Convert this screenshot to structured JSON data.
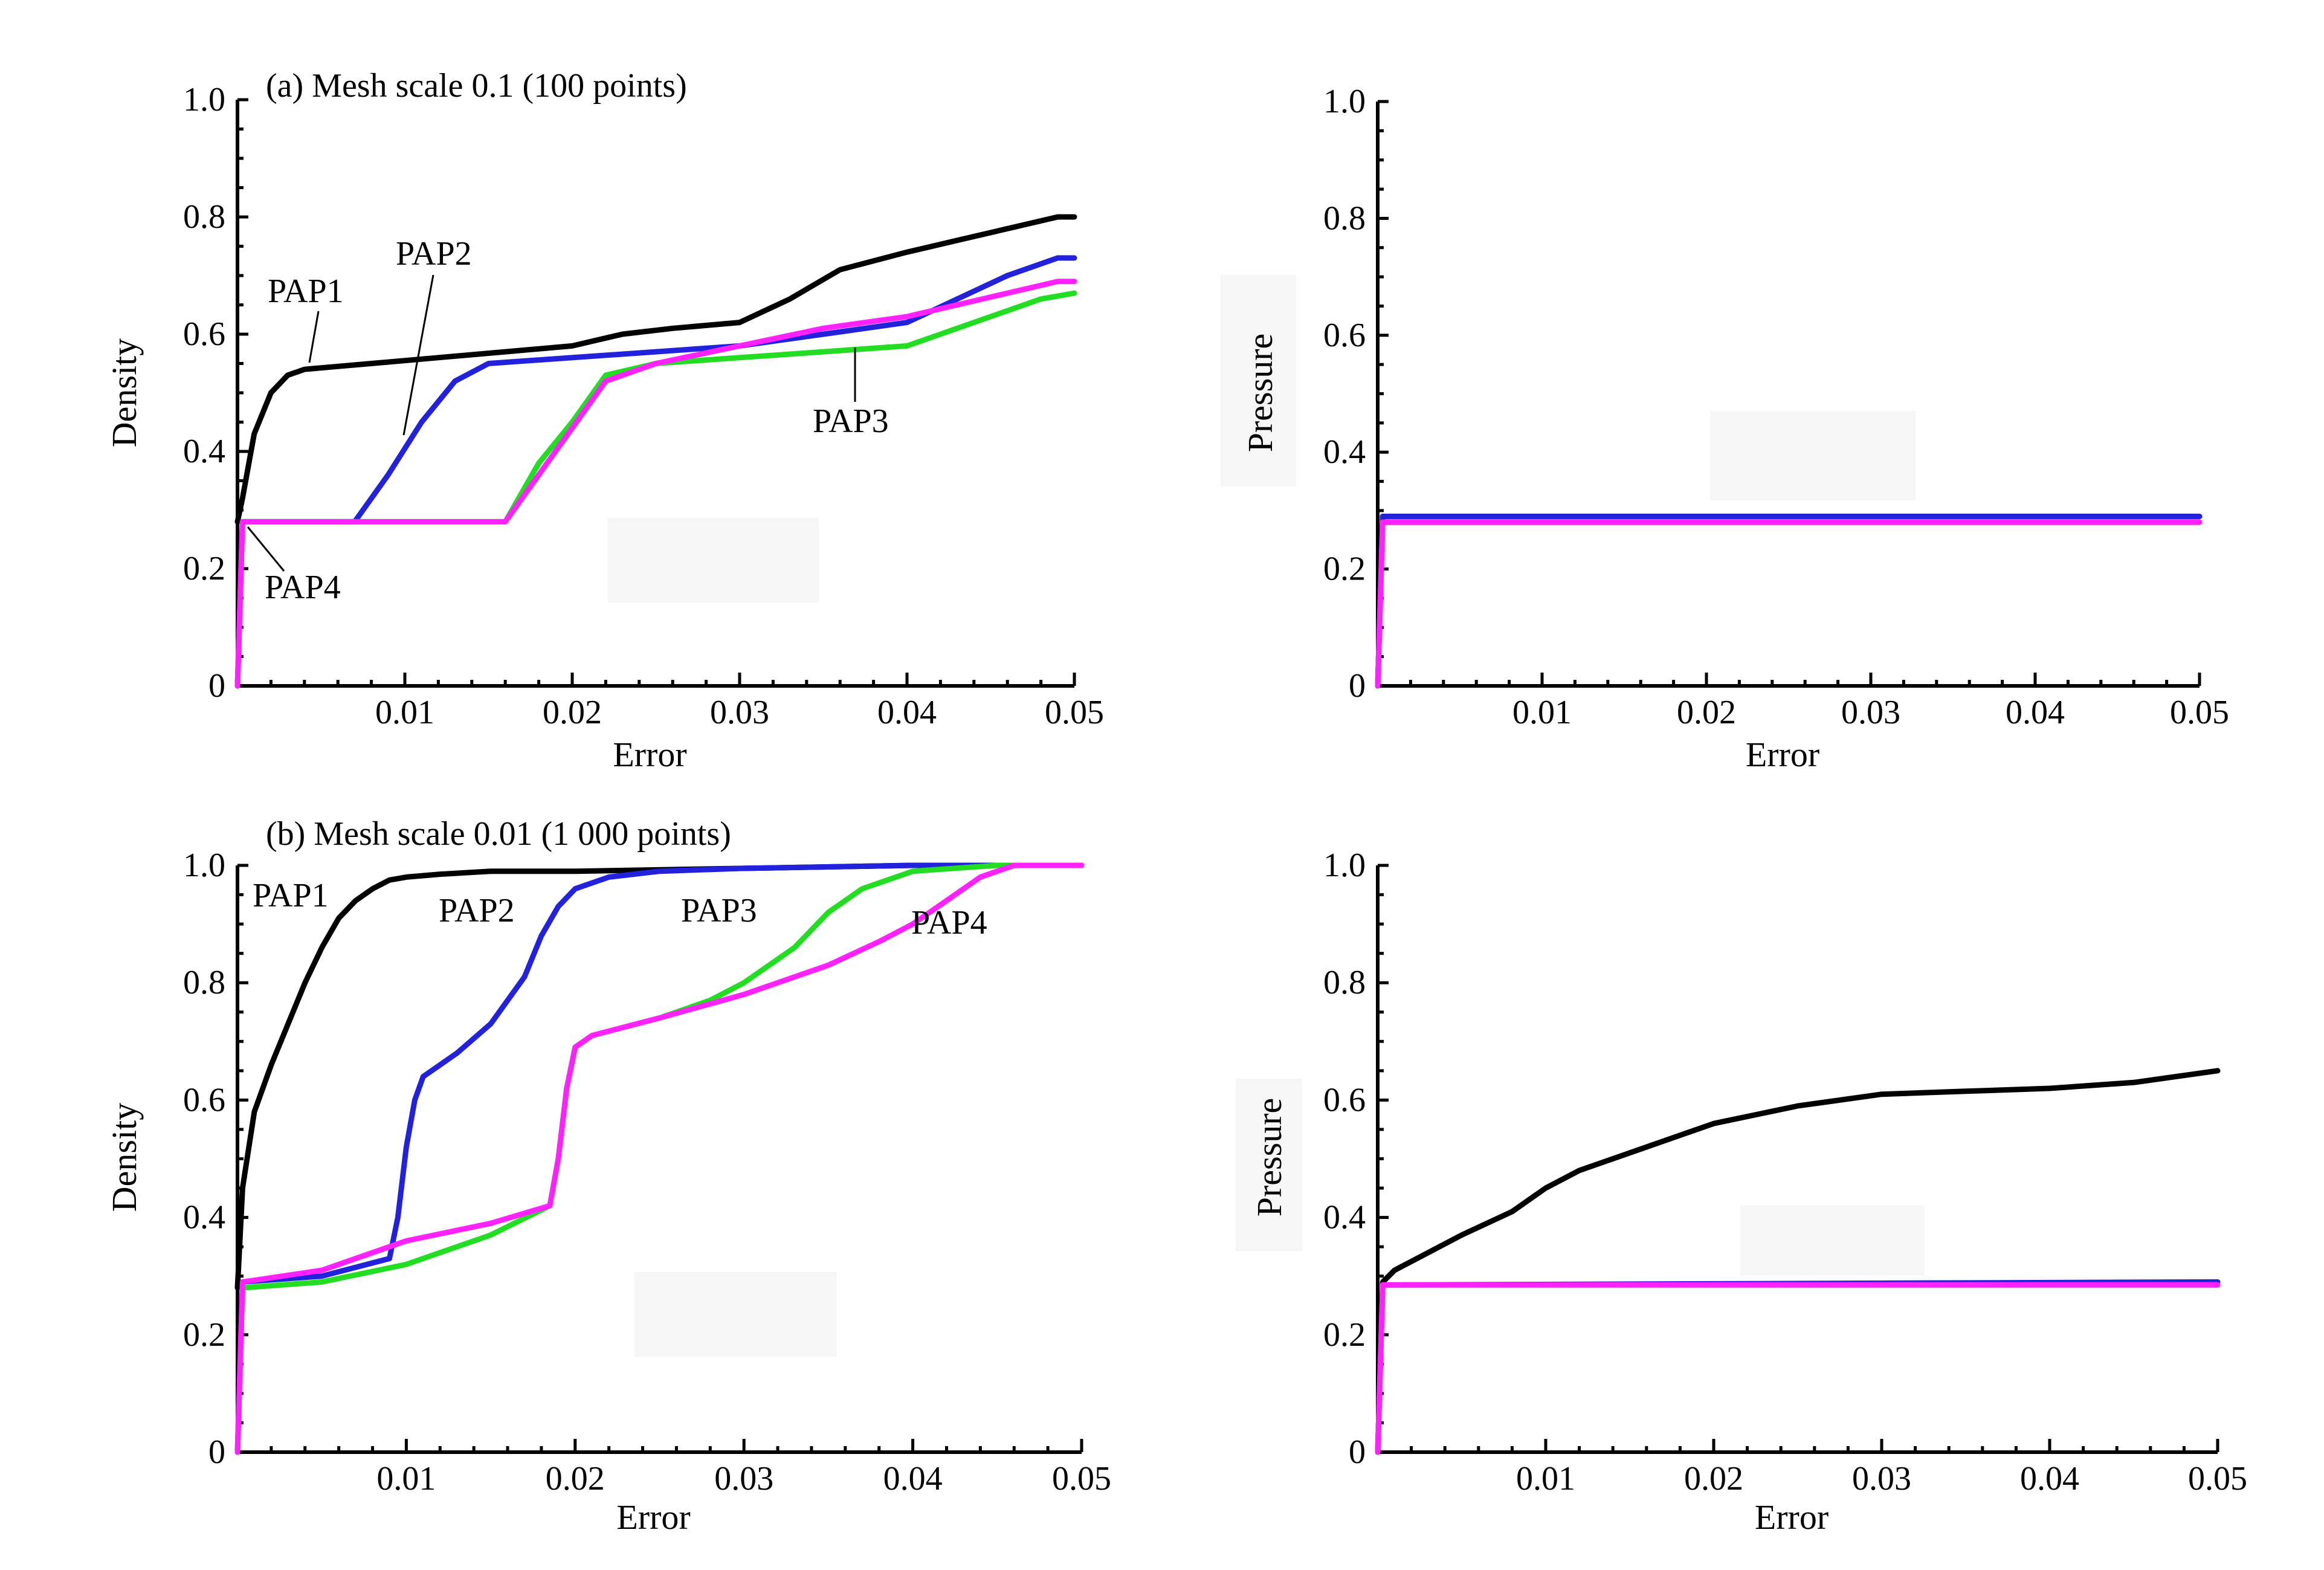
{
  "chart_data": [
    {
      "type": "line",
      "title": "(a) Mesh scale 0.1 (100 points)",
      "xlabel": "Error",
      "ylabel": "Density",
      "xlim": [
        0,
        0.05
      ],
      "ylim": [
        0,
        1.0
      ],
      "xticks": [
        "0.01",
        "0.02",
        "0.03",
        "0.04",
        "0.05"
      ],
      "yticks": [
        "0",
        "0.2",
        "0.4",
        "0.6",
        "0.8",
        "1.0"
      ],
      "series": [
        {
          "name": "PAP1",
          "color": "#000000",
          "x": [
            0,
            0.0003,
            0.001,
            0.002,
            0.003,
            0.004,
            0.006,
            0.008,
            0.012,
            0.016,
            0.02,
            0.023,
            0.026,
            0.03,
            0.033,
            0.036,
            0.04,
            0.043,
            0.046,
            0.049,
            0.05
          ],
          "y": [
            0.28,
            0.32,
            0.43,
            0.5,
            0.53,
            0.54,
            0.545,
            0.55,
            0.56,
            0.57,
            0.58,
            0.6,
            0.61,
            0.62,
            0.66,
            0.71,
            0.74,
            0.76,
            0.78,
            0.8,
            0.8
          ]
        },
        {
          "name": "PAP2",
          "color": "#2222dd",
          "x": [
            0,
            0.0003,
            0.007,
            0.009,
            0.011,
            0.013,
            0.015,
            0.02,
            0.025,
            0.03,
            0.035,
            0.04,
            0.043,
            0.046,
            0.049,
            0.05
          ],
          "y": [
            0,
            0.28,
            0.28,
            0.36,
            0.45,
            0.52,
            0.55,
            0.56,
            0.57,
            0.58,
            0.6,
            0.62,
            0.66,
            0.7,
            0.73,
            0.73
          ]
        },
        {
          "name": "PAP3",
          "color": "#22dd22",
          "x": [
            0,
            0.0003,
            0.016,
            0.018,
            0.02,
            0.022,
            0.025,
            0.03,
            0.035,
            0.04,
            0.042,
            0.045,
            0.048,
            0.05
          ],
          "y": [
            0,
            0.28,
            0.28,
            0.38,
            0.45,
            0.53,
            0.55,
            0.56,
            0.57,
            0.58,
            0.6,
            0.63,
            0.66,
            0.67
          ]
        },
        {
          "name": "PAP4",
          "color": "#ff22ff",
          "x": [
            0,
            0.0003,
            0.016,
            0.018,
            0.02,
            0.022,
            0.025,
            0.03,
            0.035,
            0.04,
            0.043,
            0.046,
            0.049,
            0.05
          ],
          "y": [
            0,
            0.28,
            0.28,
            0.36,
            0.44,
            0.52,
            0.55,
            0.58,
            0.61,
            0.63,
            0.65,
            0.67,
            0.69,
            0.69
          ]
        }
      ],
      "annotations": [
        "PAP1",
        "PAP2",
        "PAP3",
        "PAP4"
      ]
    },
    {
      "type": "line",
      "title": "",
      "xlabel": "Error",
      "ylabel": "Pressure",
      "xlim": [
        0,
        0.05
      ],
      "ylim": [
        0,
        1.0
      ],
      "xticks": [
        "0.01",
        "0.02",
        "0.03",
        "0.04",
        "0.05"
      ],
      "yticks": [
        "0",
        "0.2",
        "0.4",
        "0.6",
        "0.8",
        "1.0"
      ],
      "series": [
        {
          "color": "#000000",
          "x": [
            0,
            0.0003,
            0.001,
            0.05
          ],
          "y": [
            0,
            0.29,
            0.29,
            0.29
          ]
        },
        {
          "color": "#2222dd",
          "x": [
            0,
            0.0003,
            0.001,
            0.05
          ],
          "y": [
            0,
            0.29,
            0.29,
            0.29
          ]
        },
        {
          "color": "#22dd22",
          "x": [
            0,
            0.0003,
            0.001,
            0.05
          ],
          "y": [
            0,
            0.28,
            0.28,
            0.28
          ]
        },
        {
          "color": "#ff22ff",
          "x": [
            0,
            0.0003,
            0.001,
            0.05
          ],
          "y": [
            0,
            0.28,
            0.28,
            0.28
          ]
        }
      ]
    },
    {
      "type": "line",
      "title": "(b) Mesh scale 0.01 (1 000 points)",
      "xlabel": "Error",
      "ylabel": "Density",
      "xlim": [
        0,
        0.05
      ],
      "ylim": [
        0,
        1.0
      ],
      "xticks": [
        "0.01",
        "0.02",
        "0.03",
        "0.04",
        "0.05"
      ],
      "yticks": [
        "0",
        "0.2",
        "0.4",
        "0.6",
        "0.8",
        "1.0"
      ],
      "series": [
        {
          "name": "PAP1",
          "color": "#000000",
          "x": [
            0,
            0.0003,
            0.001,
            0.002,
            0.003,
            0.004,
            0.005,
            0.006,
            0.007,
            0.008,
            0.009,
            0.01,
            0.012,
            0.015,
            0.02,
            0.03,
            0.04,
            0.05
          ],
          "y": [
            0.28,
            0.45,
            0.58,
            0.66,
            0.73,
            0.8,
            0.86,
            0.91,
            0.94,
            0.96,
            0.975,
            0.98,
            0.985,
            0.99,
            0.99,
            0.995,
            1.0,
            1.0
          ]
        },
        {
          "name": "PAP2",
          "color": "#2222dd",
          "x": [
            0,
            0.0003,
            0.005,
            0.009,
            0.0095,
            0.01,
            0.0105,
            0.011,
            0.013,
            0.015,
            0.017,
            0.018,
            0.019,
            0.02,
            0.022,
            0.025,
            0.03,
            0.04,
            0.05
          ],
          "y": [
            0,
            0.29,
            0.3,
            0.33,
            0.4,
            0.52,
            0.6,
            0.64,
            0.68,
            0.73,
            0.81,
            0.88,
            0.93,
            0.96,
            0.98,
            0.99,
            0.995,
            1.0,
            1.0
          ]
        },
        {
          "name": "PAP3",
          "color": "#22dd22",
          "x": [
            0,
            0.0003,
            0.005,
            0.01,
            0.015,
            0.0185,
            0.019,
            0.0195,
            0.02,
            0.021,
            0.025,
            0.028,
            0.03,
            0.033,
            0.035,
            0.037,
            0.04,
            0.045,
            0.05
          ],
          "y": [
            0,
            0.28,
            0.29,
            0.32,
            0.37,
            0.42,
            0.5,
            0.62,
            0.69,
            0.71,
            0.74,
            0.77,
            0.8,
            0.86,
            0.92,
            0.96,
            0.99,
            1.0,
            1.0
          ]
        },
        {
          "name": "PAP4",
          "color": "#ff22ff",
          "x": [
            0,
            0.0003,
            0.005,
            0.01,
            0.015,
            0.0185,
            0.019,
            0.0195,
            0.02,
            0.021,
            0.025,
            0.03,
            0.035,
            0.038,
            0.04,
            0.042,
            0.044,
            0.046,
            0.05
          ],
          "y": [
            0,
            0.29,
            0.31,
            0.36,
            0.39,
            0.42,
            0.5,
            0.62,
            0.69,
            0.71,
            0.74,
            0.78,
            0.83,
            0.87,
            0.9,
            0.94,
            0.98,
            1.0,
            1.0
          ]
        }
      ],
      "annotations": [
        "PAP1",
        "PAP2",
        "PAP3",
        "PAP4"
      ]
    },
    {
      "type": "line",
      "title": "",
      "xlabel": "Error",
      "ylabel": "Pressure",
      "xlim": [
        0,
        0.05
      ],
      "ylim": [
        0,
        1.0
      ],
      "xticks": [
        "0.01",
        "0.02",
        "0.03",
        "0.04",
        "0.05"
      ],
      "yticks": [
        "0",
        "0.2",
        "0.4",
        "0.6",
        "0.8",
        "1.0"
      ],
      "series": [
        {
          "color": "#000000",
          "x": [
            0,
            0.0003,
            0.001,
            0.003,
            0.005,
            0.008,
            0.01,
            0.012,
            0.015,
            0.02,
            0.025,
            0.03,
            0.035,
            0.04,
            0.045,
            0.05
          ],
          "y": [
            0,
            0.29,
            0.31,
            0.34,
            0.37,
            0.41,
            0.45,
            0.48,
            0.51,
            0.56,
            0.59,
            0.61,
            0.615,
            0.62,
            0.63,
            0.65
          ]
        },
        {
          "color": "#2222dd",
          "x": [
            0,
            0.0003,
            0.001,
            0.05
          ],
          "y": [
            0,
            0.285,
            0.285,
            0.29
          ]
        },
        {
          "color": "#22dd22",
          "x": [
            0,
            0.0003,
            0.001,
            0.05
          ],
          "y": [
            0,
            0.285,
            0.285,
            0.285
          ]
        },
        {
          "color": "#ff22ff",
          "x": [
            0,
            0.0003,
            0.001,
            0.05
          ],
          "y": [
            0,
            0.285,
            0.285,
            0.285
          ]
        }
      ]
    }
  ]
}
